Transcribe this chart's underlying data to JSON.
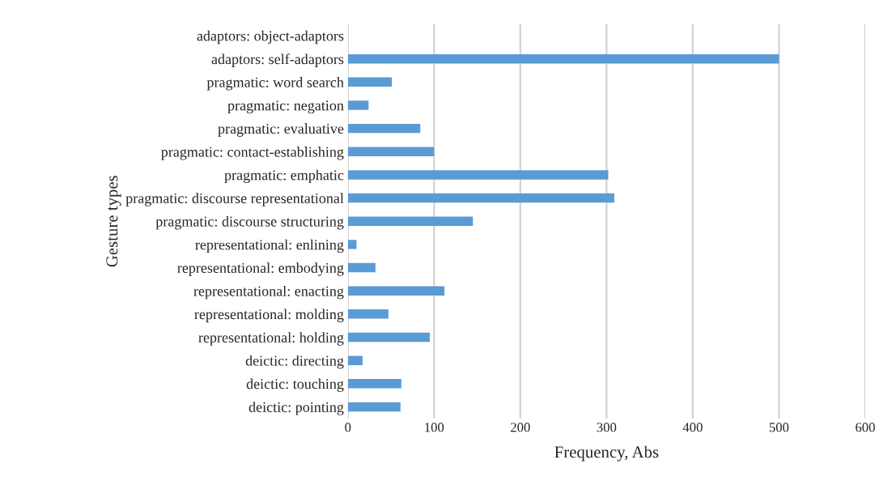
{
  "chart_data": {
    "type": "bar",
    "orientation": "horizontal",
    "xlabel": "Frequency, Abs",
    "ylabel": "Gesture types",
    "categories": [
      "adaptors: object-adaptors",
      "adaptors: self-adaptors",
      "pragmatic: word search",
      "pragmatic: negation",
      "pragmatic: evaluative",
      "pragmatic: contact-establishing",
      "pragmatic: emphatic",
      "pragmatic: discourse representational",
      "pragmatic: discourse structuring",
      "representational: enlining",
      "representational: embodying",
      "representational: enacting",
      "representational: molding",
      "representational: holding",
      "deictic: directing",
      "deictic: touching",
      "deictic: pointing"
    ],
    "values": [
      0,
      500,
      51,
      24,
      84,
      100,
      302,
      309,
      145,
      10,
      32,
      112,
      47,
      95,
      17,
      62,
      61
    ],
    "color": "#5b9bd5",
    "xlim": [
      0,
      600
    ],
    "xticks": [
      0,
      100,
      200,
      300,
      400,
      500,
      600
    ],
    "grid": "x"
  }
}
